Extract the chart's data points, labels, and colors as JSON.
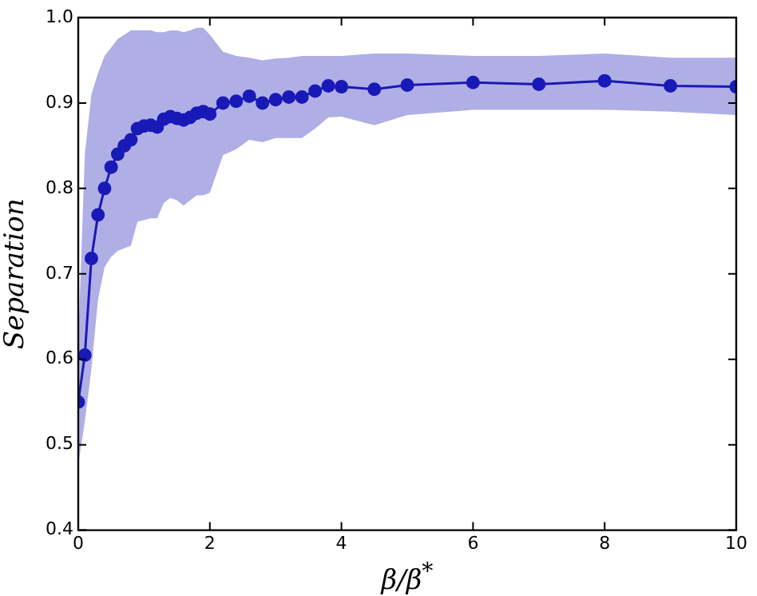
{
  "chart_data": {
    "type": "line",
    "xlabel": "β/β$^{*}$",
    "ylabel": "Separation",
    "x": [
      0,
      0.1,
      0.2,
      0.3,
      0.4,
      0.5,
      0.6,
      0.7,
      0.8,
      0.9,
      1.0,
      1.1,
      1.2,
      1.3,
      1.4,
      1.5,
      1.6,
      1.7,
      1.8,
      1.9,
      2.0,
      2.2,
      2.4,
      2.6,
      2.8,
      3.0,
      3.2,
      3.4,
      3.6,
      3.8,
      4.0,
      4.5,
      5,
      6,
      7,
      8,
      9,
      10
    ],
    "series": [
      {
        "color": "#1a1ab8",
        "values": [
          0.55,
          0.605,
          0.718,
          0.769,
          0.8,
          0.825,
          0.84,
          0.85,
          0.857,
          0.87,
          0.873,
          0.874,
          0.872,
          0.881,
          0.884,
          0.882,
          0.88,
          0.883,
          0.888,
          0.89,
          0.887,
          0.9,
          0.902,
          0.908,
          0.9,
          0.904,
          0.907,
          0.907,
          0.914,
          0.92,
          0.919,
          0.916,
          0.921,
          0.924,
          0.922,
          0.926,
          0.92,
          0.919
        ],
        "lower": [
          0.477,
          0.527,
          0.589,
          0.67,
          0.708,
          0.72,
          0.727,
          0.73,
          0.733,
          0.761,
          0.763,
          0.765,
          0.765,
          0.783,
          0.789,
          0.786,
          0.78,
          0.786,
          0.792,
          0.792,
          0.795,
          0.839,
          0.846,
          0.857,
          0.854,
          0.859,
          0.859,
          0.859,
          0.87,
          0.883,
          0.884,
          0.874,
          0.886,
          0.892,
          0.892,
          0.892,
          0.89,
          0.886
        ],
        "upper": [
          0.62,
          0.84,
          0.91,
          0.935,
          0.955,
          0.965,
          0.975,
          0.98,
          0.985,
          0.985,
          0.985,
          0.985,
          0.983,
          0.983,
          0.985,
          0.985,
          0.983,
          0.985,
          0.988,
          0.988,
          0.98,
          0.96,
          0.955,
          0.953,
          0.95,
          0.952,
          0.953,
          0.955,
          0.955,
          0.955,
          0.955,
          0.958,
          0.958,
          0.955,
          0.955,
          0.958,
          0.953,
          0.953
        ]
      }
    ],
    "xlim": [
      0,
      10
    ],
    "xticks": [
      0,
      2,
      4,
      6,
      8,
      10
    ],
    "ylim": [
      0.4,
      1.0
    ],
    "yticks": [
      0.4,
      0.5,
      0.6,
      0.7,
      0.8,
      0.9,
      {
        "value": 1,
        "label": "1.0"
      }
    ],
    "marker": "circle",
    "line_style": "solid"
  }
}
